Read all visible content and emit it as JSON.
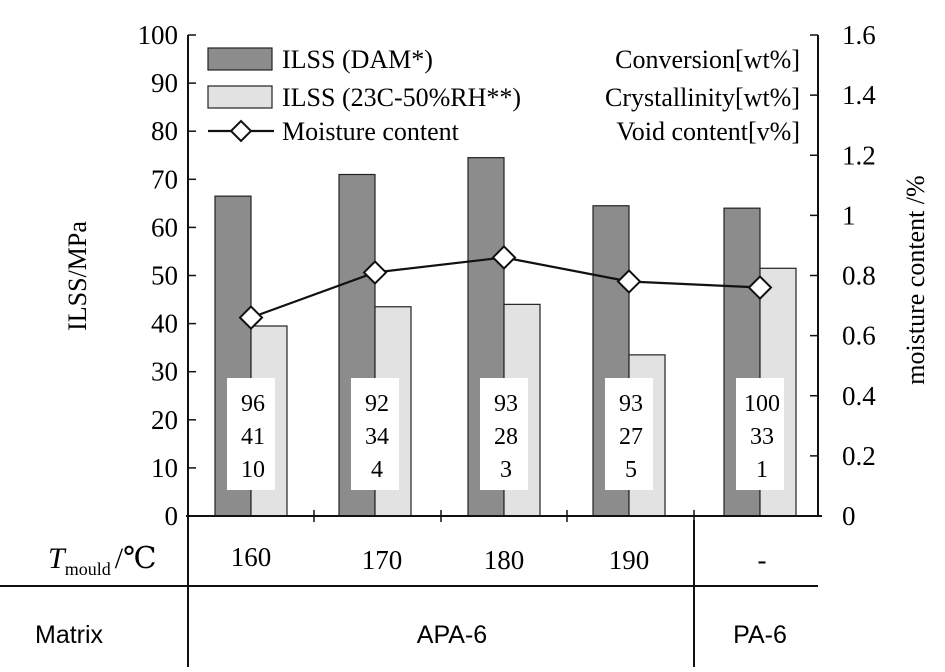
{
  "chart_data": {
    "type": "bar",
    "categories": [
      "160",
      "170",
      "180",
      "190",
      "-"
    ],
    "series": [
      {
        "name": "ILSS (DAM*)",
        "values": [
          66.5,
          71,
          74.5,
          64.5,
          64
        ],
        "color": "#8c8c8c"
      },
      {
        "name": "ILSS (23C-50%RH**)",
        "values": [
          39.5,
          43.5,
          44,
          33.5,
          51.5
        ],
        "color": "#e2e2e2"
      },
      {
        "name": "Moisture content",
        "values": [
          0.66,
          0.81,
          0.86,
          0.78,
          0.76
        ],
        "axis": "right",
        "type": "line"
      }
    ],
    "legend": [
      "ILSS (DAM*)",
      "ILSS (23C-50%RH**)",
      "Moisture content"
    ],
    "annotation_headers": [
      "Conversion[wt%]",
      "Crystallinity[wt%]",
      "Void content[v%]"
    ],
    "annotations": [
      [
        "96",
        "41",
        "10"
      ],
      [
        "92",
        "34",
        "4"
      ],
      [
        "93",
        "28",
        "3"
      ],
      [
        "93",
        "27",
        "5"
      ],
      [
        "100",
        "33",
        "1"
      ]
    ],
    "ylabel": "ILSS/MPa",
    "y2label": "moisture content /%",
    "ylim": [
      0,
      100
    ],
    "y2lim": [
      0,
      1.6
    ],
    "yticks": [
      "0",
      "10",
      "20",
      "30",
      "40",
      "50",
      "60",
      "70",
      "80",
      "90",
      "100"
    ],
    "y2ticks": [
      "0",
      "0.2",
      "0.4",
      "0.6",
      "0.8",
      "1",
      "1.2",
      "1.4",
      "1.6"
    ],
    "xrow_label": "T",
    "xrow_label_sub": "mould",
    "xrow_label_unit": "/℃",
    "matrix_label": "Matrix",
    "matrix_groups": [
      "APA-6",
      "PA-6"
    ],
    "grid": false
  }
}
